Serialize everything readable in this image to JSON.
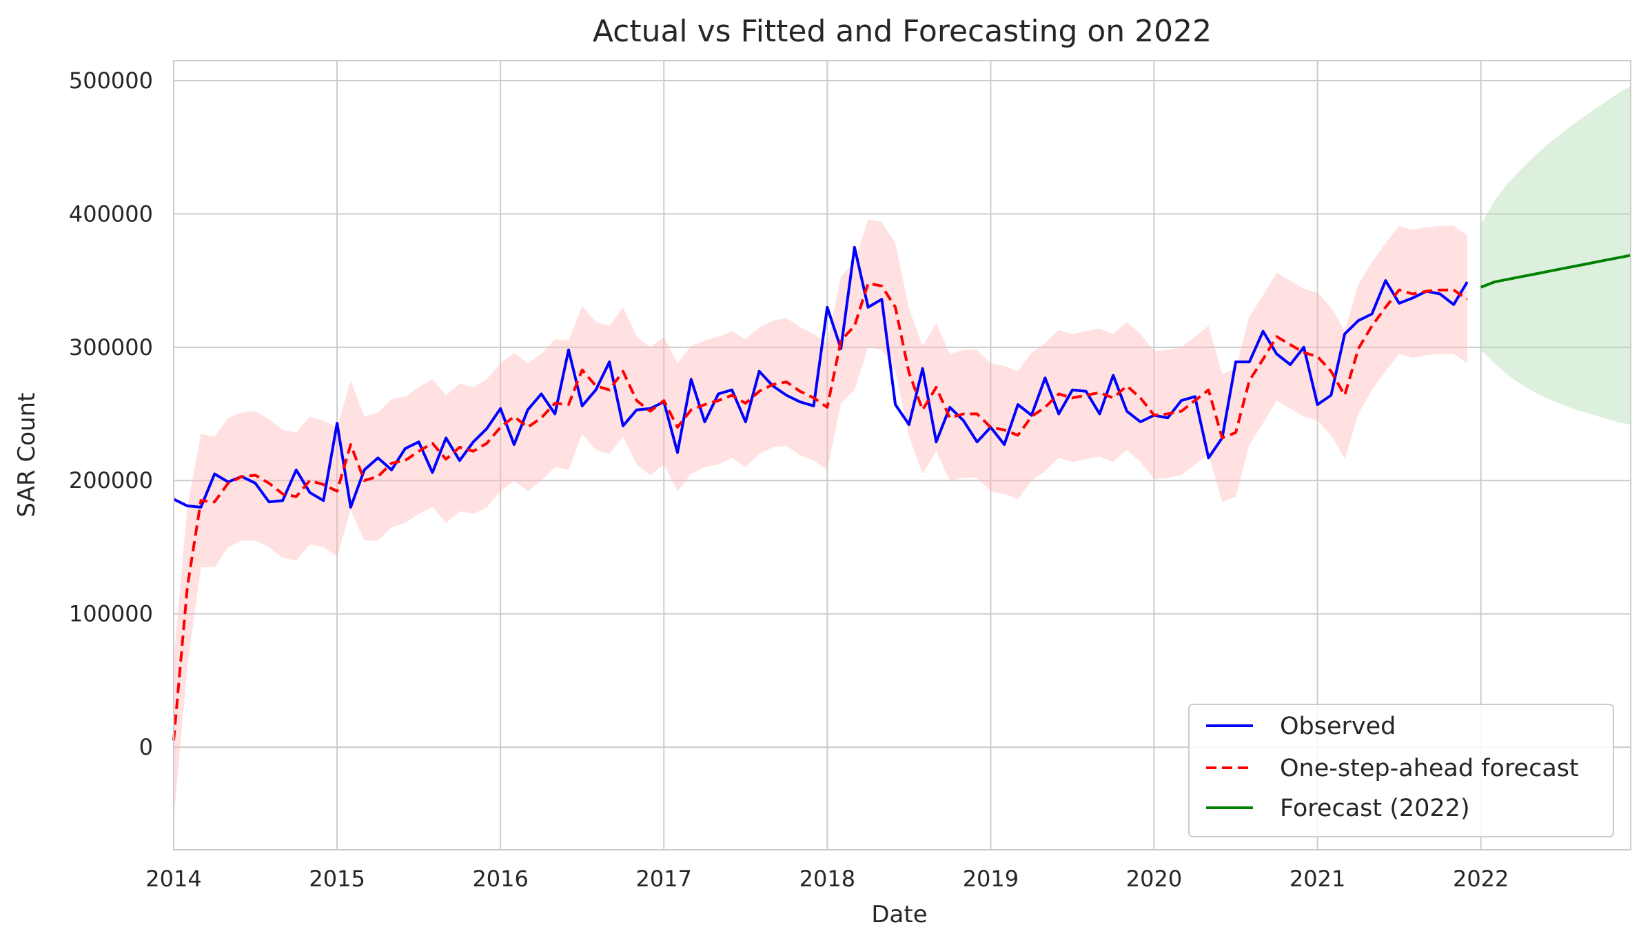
{
  "chart_data": {
    "type": "line",
    "title": "Actual vs Fitted and Forecasting on 2022",
    "xlabel": "Date",
    "ylabel": "SAR Count",
    "xlim": [
      "2014-01",
      "2022-12"
    ],
    "ylim": [
      -77000,
      515000
    ],
    "xticks": [
      "2014",
      "2015",
      "2016",
      "2017",
      "2018",
      "2019",
      "2020",
      "2021",
      "2022"
    ],
    "yticks": [
      "0",
      "100000",
      "200000",
      "300000",
      "400000",
      "500000"
    ],
    "grid": true,
    "legend_position": "bottom-right",
    "colors": {
      "observed": "#0000ff",
      "fitted": "#ff0000",
      "fitted_band": "#ffb3b3",
      "forecast": "#008000",
      "forecast_band": "#b3dcb3"
    },
    "series": [
      {
        "name": "Observed",
        "style": "solid",
        "x": [
          "2014-01",
          "2014-02",
          "2014-03",
          "2014-04",
          "2014-05",
          "2014-06",
          "2014-07",
          "2014-08",
          "2014-09",
          "2014-10",
          "2014-11",
          "2014-12",
          "2015-01",
          "2015-02",
          "2015-03",
          "2015-04",
          "2015-05",
          "2015-06",
          "2015-07",
          "2015-08",
          "2015-09",
          "2015-10",
          "2015-11",
          "2015-12",
          "2016-01",
          "2016-02",
          "2016-03",
          "2016-04",
          "2016-05",
          "2016-06",
          "2016-07",
          "2016-08",
          "2016-09",
          "2016-10",
          "2016-11",
          "2016-12",
          "2017-01",
          "2017-02",
          "2017-03",
          "2017-04",
          "2017-05",
          "2017-06",
          "2017-07",
          "2017-08",
          "2017-09",
          "2017-10",
          "2017-11",
          "2017-12",
          "2018-01",
          "2018-02",
          "2018-03",
          "2018-04",
          "2018-05",
          "2018-06",
          "2018-07",
          "2018-08",
          "2018-09",
          "2018-10",
          "2018-11",
          "2018-12",
          "2019-01",
          "2019-02",
          "2019-03",
          "2019-04",
          "2019-05",
          "2019-06",
          "2019-07",
          "2019-08",
          "2019-09",
          "2019-10",
          "2019-11",
          "2019-12",
          "2020-01",
          "2020-02",
          "2020-03",
          "2020-04",
          "2020-05",
          "2020-06",
          "2020-07",
          "2020-08",
          "2020-09",
          "2020-10",
          "2020-11",
          "2020-12",
          "2021-01",
          "2021-02",
          "2021-03",
          "2021-04",
          "2021-05",
          "2021-06",
          "2021-07",
          "2021-08",
          "2021-09",
          "2021-10",
          "2021-11",
          "2021-12"
        ],
        "values": [
          186000,
          181000,
          180000,
          205000,
          199000,
          203000,
          198000,
          184000,
          185000,
          208000,
          191000,
          185000,
          243000,
          180000,
          208000,
          217000,
          208000,
          224000,
          229000,
          206000,
          232000,
          215000,
          229000,
          239000,
          254000,
          227000,
          253000,
          265000,
          250000,
          298000,
          256000,
          268000,
          289000,
          241000,
          253000,
          254000,
          259000,
          221000,
          276000,
          244000,
          265000,
          268000,
          244000,
          282000,
          271000,
          264000,
          259000,
          256000,
          330000,
          299000,
          375000,
          330000,
          336000,
          257000,
          242000,
          284000,
          229000,
          255000,
          245000,
          229000,
          240000,
          227000,
          257000,
          249000,
          277000,
          250000,
          268000,
          267000,
          250000,
          279000,
          252000,
          244000,
          249000,
          247000,
          260000,
          263000,
          217000,
          232000,
          289000,
          289000,
          312000,
          295000,
          287000,
          300000,
          257000,
          264000,
          310000,
          320000,
          325000,
          350000,
          333000,
          337000,
          342000,
          340000,
          332000,
          349000
        ]
      },
      {
        "name": "One-step-ahead forecast",
        "style": "dashed",
        "x_start": "2014-01",
        "values": [
          5000,
          120000,
          185000,
          184000,
          198000,
          203000,
          204000,
          198000,
          190000,
          188000,
          200000,
          197000,
          192000,
          227000,
          200000,
          203000,
          213000,
          215000,
          222000,
          228000,
          216000,
          225000,
          222000,
          228000,
          240000,
          248000,
          240000,
          247000,
          258000,
          257000,
          283000,
          271000,
          268000,
          282000,
          260000,
          252000,
          260000,
          240000,
          253000,
          257000,
          260000,
          264000,
          258000,
          267000,
          272000,
          274000,
          267000,
          262000,
          255000,
          305000,
          316000,
          348000,
          346000,
          330000,
          281000,
          253000,
          270000,
          247000,
          250000,
          250000,
          240000,
          238000,
          234000,
          248000,
          255000,
          265000,
          262000,
          264000,
          266000,
          262000,
          271000,
          262000,
          249000,
          250000,
          252000,
          260000,
          268000,
          232000,
          236000,
          275000,
          291000,
          308000,
          302000,
          296000,
          293000,
          282000,
          264000,
          299000,
          316000,
          330000,
          343000,
          340000,
          342000,
          343000,
          343000,
          336000
        ],
        "ci_lower": [
          -55000,
          60000,
          135000,
          135000,
          150000,
          155000,
          155000,
          150000,
          142000,
          140000,
          152000,
          150000,
          143000,
          178000,
          155000,
          155000,
          165000,
          168000,
          175000,
          180000,
          168000,
          177000,
          175000,
          180000,
          192000,
          200000,
          192000,
          200000,
          210000,
          208000,
          235000,
          223000,
          220000,
          233000,
          212000,
          204000,
          212000,
          192000,
          205000,
          210000,
          212000,
          217000,
          210000,
          220000,
          225000,
          226000,
          219000,
          215000,
          208000,
          258000,
          268000,
          300000,
          298000,
          282000,
          233000,
          205000,
          222000,
          200000,
          202000,
          202000,
          192000,
          190000,
          186000,
          200000,
          207000,
          217000,
          214000,
          216000,
          218000,
          214000,
          223000,
          214000,
          201000,
          202000,
          204000,
          212000,
          220000,
          184000,
          188000,
          227000,
          243000,
          260000,
          254000,
          248000,
          245000,
          234000,
          216000,
          250000,
          268000,
          282000,
          295000,
          292000,
          294000,
          295000,
          295000,
          288000
        ],
        "ci_upper": [
          65000,
          180000,
          235000,
          233000,
          247000,
          251000,
          252000,
          246000,
          238000,
          236000,
          248000,
          245000,
          240000,
          275000,
          248000,
          251000,
          261000,
          263000,
          270000,
          276000,
          264000,
          273000,
          270000,
          276000,
          288000,
          296000,
          288000,
          295000,
          306000,
          305000,
          331000,
          319000,
          316000,
          330000,
          308000,
          300000,
          308000,
          288000,
          301000,
          305000,
          308000,
          312000,
          306000,
          315000,
          320000,
          322000,
          315000,
          310000,
          303000,
          353000,
          364000,
          396000,
          394000,
          378000,
          329000,
          301000,
          318000,
          295000,
          298000,
          298000,
          288000,
          286000,
          282000,
          296000,
          303000,
          313000,
          310000,
          312000,
          314000,
          310000,
          319000,
          310000,
          297000,
          298000,
          300000,
          308000,
          316000,
          280000,
          284000,
          323000,
          339000,
          356000,
          350000,
          344000,
          341000,
          330000,
          312000,
          347000,
          364000,
          378000,
          391000,
          388000,
          390000,
          391000,
          391000,
          384000
        ]
      },
      {
        "name": "Forecast (2022)",
        "style": "solid",
        "x": [
          "2022-01",
          "2022-02",
          "2022-03",
          "2022-04",
          "2022-05",
          "2022-06",
          "2022-07",
          "2022-08",
          "2022-09",
          "2022-10",
          "2022-11",
          "2022-12"
        ],
        "values": [
          345000,
          349000,
          351000,
          353000,
          355000,
          357000,
          359000,
          361000,
          363000,
          365000,
          367000,
          369000
        ],
        "ci_lower": [
          298000,
          288000,
          279000,
          272000,
          266000,
          261000,
          257000,
          253000,
          250000,
          247000,
          244000,
          242000
        ],
        "ci_upper": [
          392000,
          410000,
          423000,
          434000,
          444000,
          453000,
          461000,
          469000,
          476000,
          483000,
          490000,
          496000
        ]
      }
    ]
  }
}
